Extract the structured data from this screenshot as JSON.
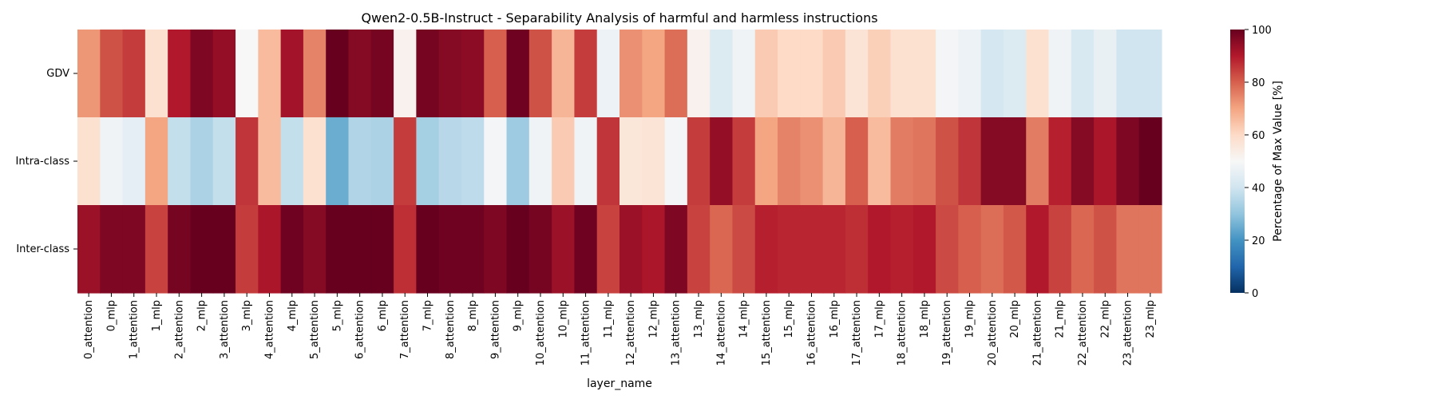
{
  "chart_data": {
    "type": "heatmap",
    "title": "Qwen2-0.5B-Instruct - Separability Analysis of harmful and harmless instructions",
    "xlabel": "layer_name",
    "ylabel": "",
    "colorbar_label": "Percentage of Max Value [%]",
    "colorbar_range": [
      0,
      100
    ],
    "colorbar_ticks": [
      "0",
      "20",
      "40",
      "60",
      "80",
      "100"
    ],
    "colormap": "RdBu_r",
    "rows": [
      "GDV",
      "Intra-class",
      "Inter-class"
    ],
    "columns": [
      "0_attention",
      "0_mlp",
      "1_attention",
      "1_mlp",
      "2_attention",
      "2_mlp",
      "3_attention",
      "3_mlp",
      "4_attention",
      "4_mlp",
      "5_attention",
      "5_mlp",
      "6_attention",
      "6_mlp",
      "7_attention",
      "7_mlp",
      "8_attention",
      "8_mlp",
      "9_attention",
      "9_mlp",
      "10_attention",
      "10_mlp",
      "11_attention",
      "11_mlp",
      "12_attention",
      "12_mlp",
      "13_attention",
      "13_mlp",
      "14_attention",
      "14_mlp",
      "15_attention",
      "15_mlp",
      "16_attention",
      "16_mlp",
      "17_attention",
      "17_mlp",
      "18_attention",
      "18_mlp",
      "19_attention",
      "19_mlp",
      "20_attention",
      "20_mlp",
      "21_attention",
      "21_mlp",
      "22_attention",
      "22_mlp",
      "23_attention",
      "23_mlp"
    ],
    "values": [
      [
        72,
        82,
        85,
        58,
        90,
        97,
        94,
        50,
        66,
        92,
        75,
        100,
        96,
        98,
        52,
        98,
        96,
        95,
        80,
        99,
        82,
        67,
        85,
        47,
        73,
        70,
        78,
        52,
        43,
        48,
        63,
        60,
        60,
        63,
        57,
        62,
        58,
        58,
        49,
        47,
        41,
        43,
        58,
        48,
        42,
        46,
        40,
        40
      ],
      [
        58,
        48,
        45,
        70,
        38,
        34,
        38,
        86,
        66,
        38,
        58,
        25,
        35,
        34,
        85,
        33,
        36,
        37,
        49,
        32,
        48,
        63,
        48,
        86,
        56,
        57,
        49,
        85,
        94,
        85,
        70,
        75,
        73,
        67,
        80,
        66,
        76,
        77,
        82,
        86,
        96,
        96,
        76,
        89,
        96,
        91,
        97,
        100
      ],
      [
        93,
        97,
        97,
        84,
        98,
        100,
        100,
        85,
        91,
        99,
        96,
        100,
        100,
        100,
        87,
        100,
        99,
        99,
        97,
        100,
        98,
        93,
        99,
        84,
        93,
        91,
        97,
        84,
        79,
        83,
        89,
        88,
        88,
        88,
        87,
        90,
        89,
        90,
        83,
        80,
        78,
        81,
        90,
        84,
        79,
        82,
        77,
        77
      ]
    ]
  }
}
